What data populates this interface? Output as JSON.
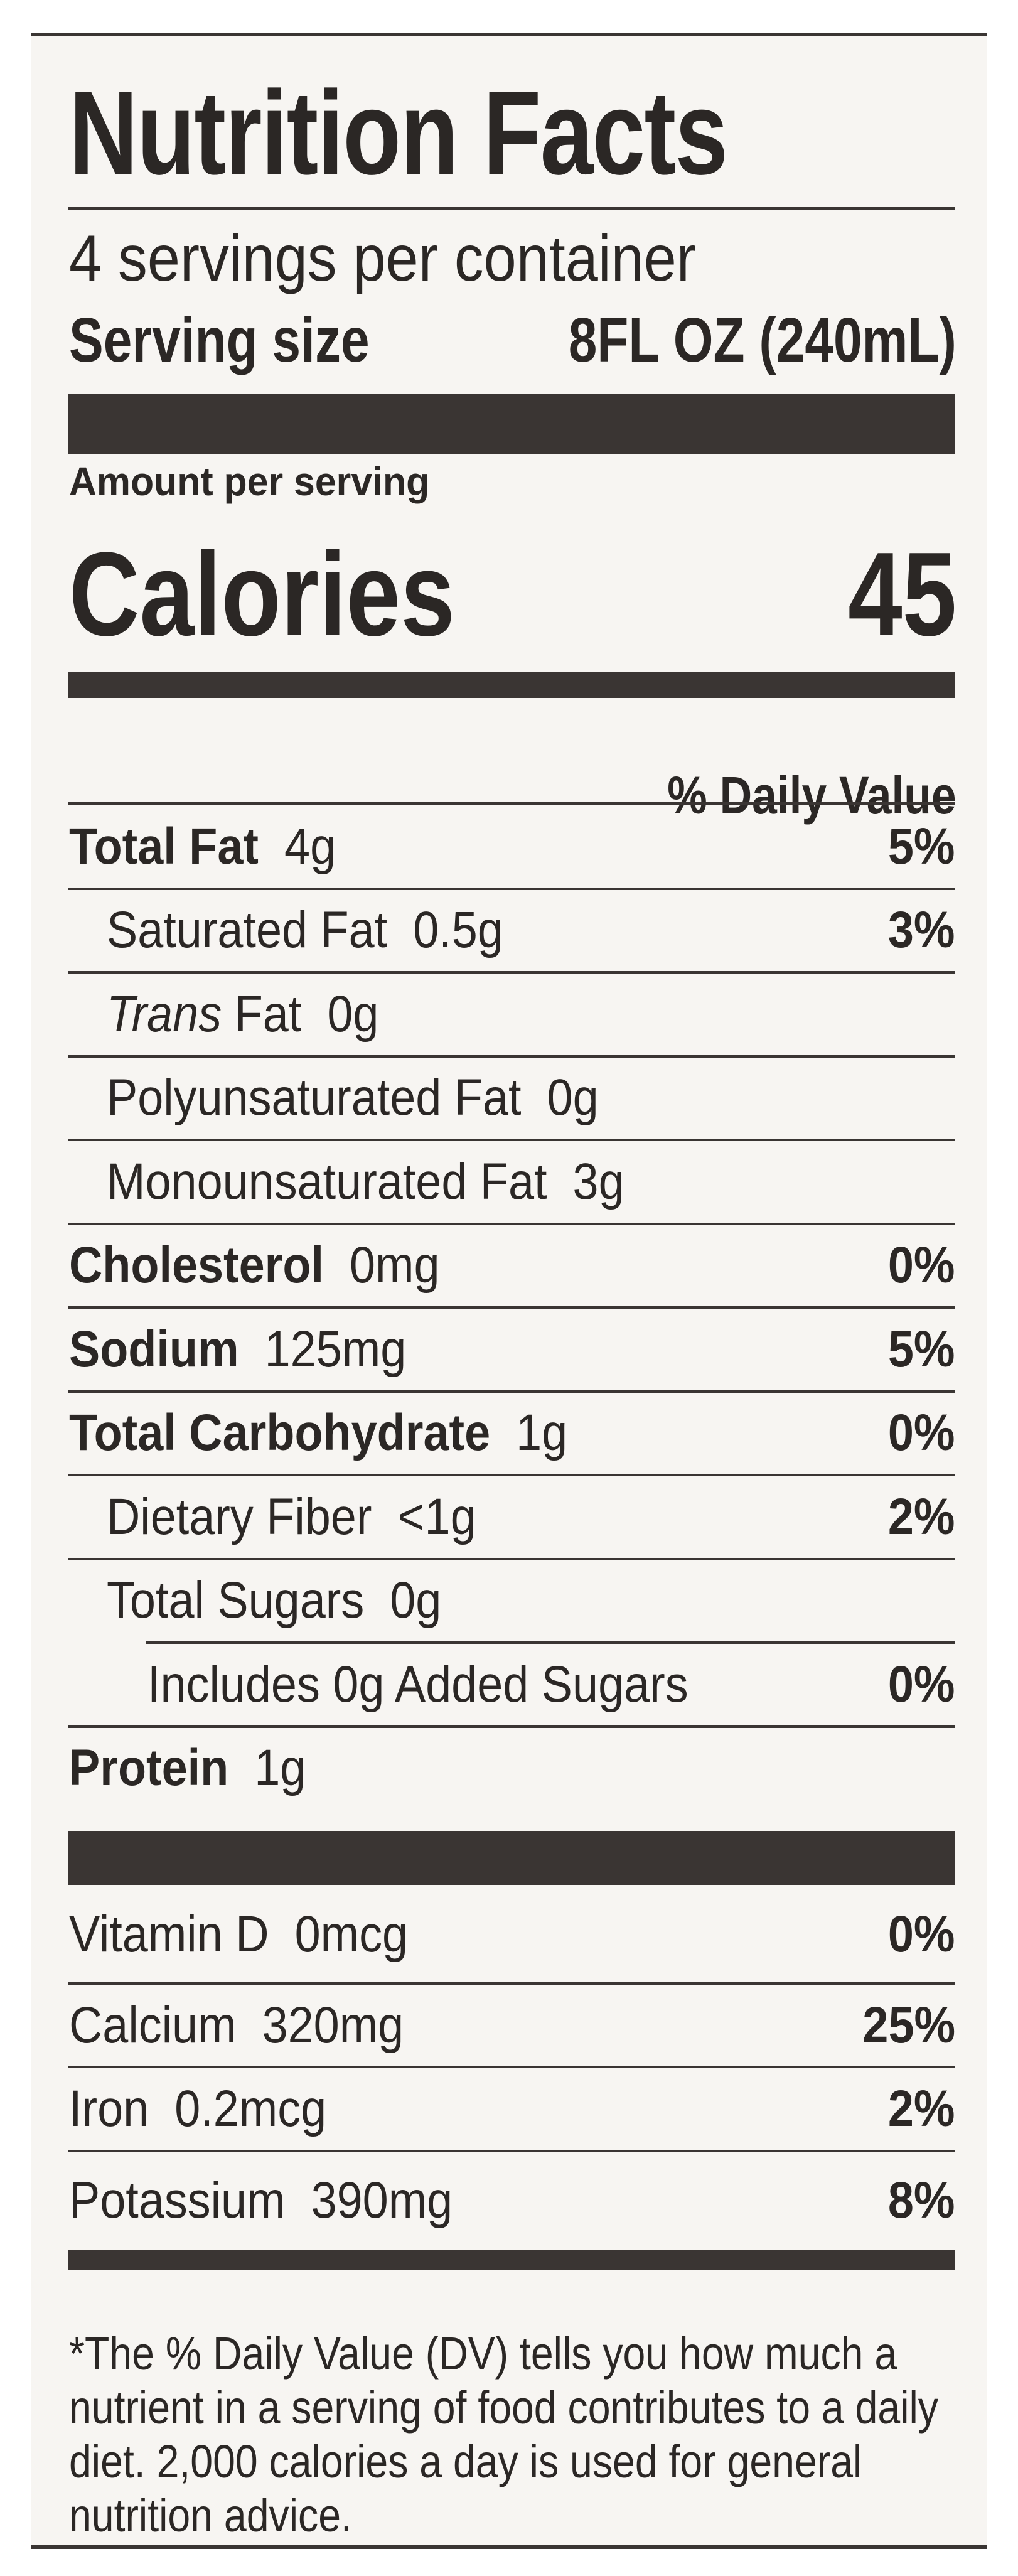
{
  "label": {
    "title": "Nutrition Facts",
    "servings_per_container": "4 servings per container",
    "serving_size_label": "Serving size",
    "serving_size_value": "8FL OZ (240mL)",
    "amount_per_serving": "Amount per serving",
    "calories_label": "Calories",
    "calories_value": "45",
    "daily_value_header": "% Daily Value",
    "nutrients": [
      {
        "name": "Total Fat",
        "amount": "4g",
        "dv": "5%",
        "bold": true,
        "indent": 0
      },
      {
        "name": "Saturated Fat",
        "amount": "0.5g",
        "dv": "3%",
        "bold": false,
        "indent": 1
      },
      {
        "italic_prefix": "Trans",
        "name": "Fat",
        "amount": "0g",
        "dv": "",
        "bold": false,
        "indent": 1
      },
      {
        "name": "Polyunsaturated Fat",
        "amount": "0g",
        "dv": "",
        "bold": false,
        "indent": 1
      },
      {
        "name": "Monounsaturated Fat",
        "amount": "3g",
        "dv": "",
        "bold": false,
        "indent": 1
      },
      {
        "name": "Cholesterol",
        "amount": "0mg",
        "dv": "0%",
        "bold": true,
        "indent": 0
      },
      {
        "name": "Sodium",
        "amount": "125mg",
        "dv": "5%",
        "bold": true,
        "indent": 0
      },
      {
        "name": "Total Carbohydrate",
        "amount": "1g",
        "dv": "0%",
        "bold": true,
        "indent": 0
      },
      {
        "name": "Dietary Fiber",
        "amount": "<1g",
        "dv": "2%",
        "bold": false,
        "indent": 1
      },
      {
        "name": "Total Sugars",
        "amount": "0g",
        "dv": "",
        "bold": false,
        "indent": 1
      },
      {
        "name": "Includes 0g Added Sugars",
        "amount": "",
        "dv": "0%",
        "bold": false,
        "indent": 2
      },
      {
        "name": "Protein",
        "amount": "1g",
        "dv": "",
        "bold": true,
        "indent": 0
      }
    ],
    "vitamins": [
      {
        "name": "Vitamin D",
        "amount": "0mcg",
        "dv": "0%"
      },
      {
        "name": "Calcium",
        "amount": "320mg",
        "dv": "25%"
      },
      {
        "name": "Iron",
        "amount": "0.2mcg",
        "dv": "2%"
      },
      {
        "name": "Potassium",
        "amount": "390mg",
        "dv": "8%"
      }
    ],
    "footnote": "*The % Daily Value (DV) tells you how much a nutrient in a serving of food contributes to a daily diet. 2,000 calories a day is used for general nutrition advice."
  },
  "colors": {
    "ink": "#2b2725",
    "panel": "#f7f5f2"
  }
}
